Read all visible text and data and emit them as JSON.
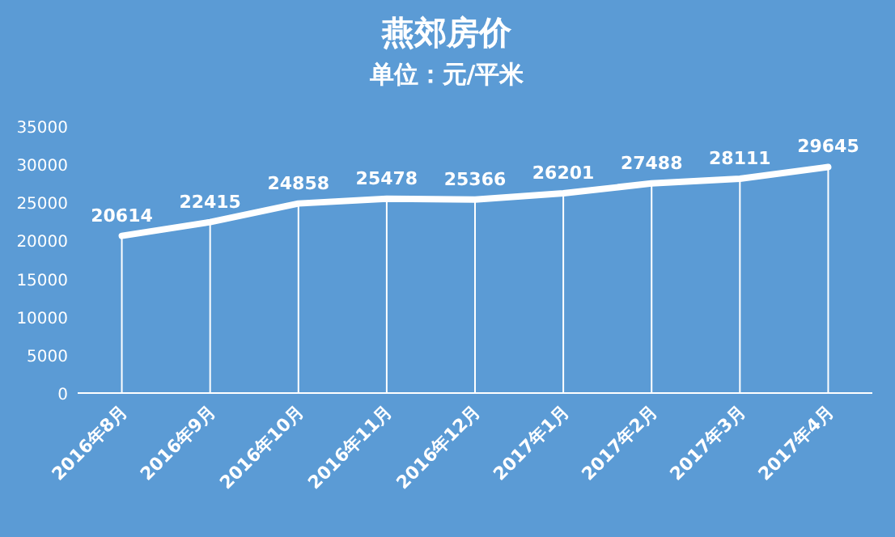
{
  "chart_data": {
    "type": "line",
    "title": "燕郊房价",
    "subtitle": "单位：元/平米",
    "categories": [
      "2016年8月",
      "2016年9月",
      "2016年10月",
      "2016年11月",
      "2016年12月",
      "2017年1月",
      "2017年2月",
      "2017年3月",
      "2017年4月"
    ],
    "series": [
      {
        "color": "#ffffff",
        "values": [
          20614,
          22415,
          24858,
          25478,
          25366,
          26201,
          27488,
          28111,
          29645
        ]
      }
    ],
    "ylim": [
      0,
      35000
    ],
    "yticks": [
      0,
      5000,
      10000,
      15000,
      20000,
      25000,
      30000,
      35000
    ],
    "data_labels": true,
    "line_style": "solid",
    "ref_lines": [
      {
        "axis": "x",
        "value": "2016年8月",
        "color": "#ffffff"
      },
      {
        "axis": "x",
        "value": "2016年9月",
        "color": "#ffffff"
      },
      {
        "axis": "x",
        "value": "2016年10月",
        "color": "#ffffff"
      },
      {
        "axis": "x",
        "value": "2016年11月",
        "color": "#ffffff"
      },
      {
        "axis": "x",
        "value": "2016年12月",
        "color": "#ffffff"
      },
      {
        "axis": "x",
        "value": "2017年1月",
        "color": "#ffffff"
      },
      {
        "axis": "x",
        "value": "2017年2月",
        "color": "#ffffff"
      },
      {
        "axis": "x",
        "value": "2017年3月",
        "color": "#ffffff"
      },
      {
        "axis": "x",
        "value": "2017年4月",
        "color": "#ffffff"
      }
    ]
  }
}
